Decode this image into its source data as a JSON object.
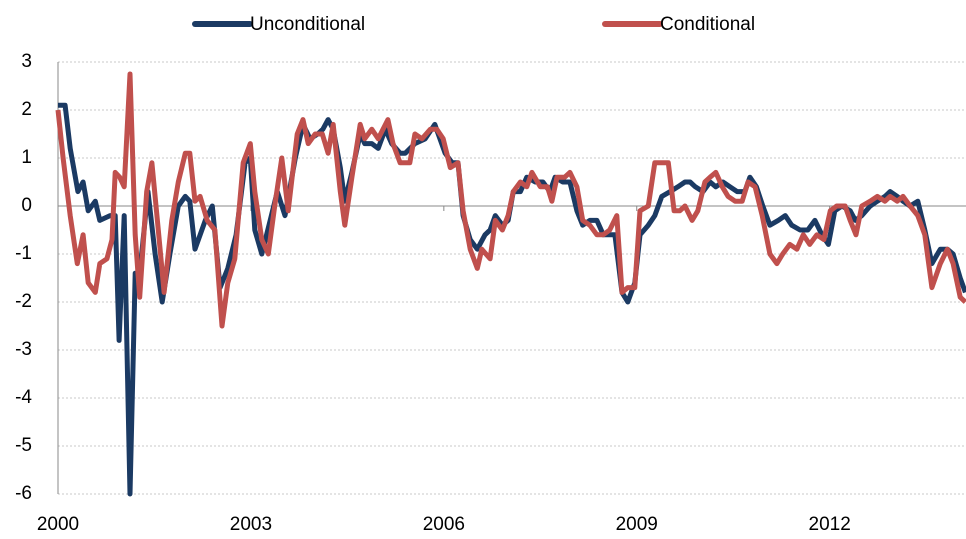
{
  "chart_data": {
    "type": "line",
    "xlim": [
      2000,
      2014.12
    ],
    "ylim": [
      -6,
      3
    ],
    "xticks": [
      2000,
      2003,
      2006,
      2009,
      2012
    ],
    "yticks": [
      -6,
      -5,
      -4,
      -3,
      -2,
      -1,
      0,
      1,
      2,
      3
    ],
    "grid": true,
    "legend": "top",
    "series": [
      {
        "name": "Unconditional",
        "color": "#1b3a63",
        "x": [
          2000,
          2000.11,
          2000.19,
          2000.31,
          2000.39,
          2000.47,
          2000.58,
          2000.65,
          2000.81,
          2000.89,
          2000.95,
          2001.03,
          2001.12,
          2001.2,
          2001.27,
          2001.4,
          2001.51,
          2001.62,
          2001.74,
          2001.87,
          2001.98,
          2002.05,
          2002.13,
          2002.29,
          2002.4,
          2002.52,
          2002.64,
          2002.77,
          2002.91,
          2002.99,
          2003.06,
          2003.17,
          2003.3,
          2003.41,
          2003.53,
          2003.69,
          2003.81,
          2003.92,
          2004.04,
          2004.12,
          2004.2,
          2004.28,
          2004.39,
          2004.46,
          2004.57,
          2004.7,
          2004.77,
          2004.88,
          2004.98,
          2005.09,
          2005.19,
          2005.32,
          2005.4,
          2005.55,
          2005.71,
          2005.86,
          2006.02,
          2006.13,
          2006.22,
          2006.3,
          2006.41,
          2006.52,
          2006.64,
          2006.72,
          2006.8,
          2006.91,
          2007,
          2007.08,
          2007.19,
          2007.29,
          2007.42,
          2007.54,
          2007.65,
          2007.73,
          2007.85,
          2007.96,
          2008.07,
          2008.16,
          2008.27,
          2008.38,
          2008.48,
          2008.55,
          2008.66,
          2008.77,
          2008.86,
          2008.97,
          2009.05,
          2009.18,
          2009.28,
          2009.39,
          2009.52,
          2009.64,
          2009.75,
          2009.83,
          2009.91,
          2010.03,
          2010.14,
          2010.23,
          2010.34,
          2010.45,
          2010.56,
          2010.68,
          2010.76,
          2010.86,
          2010.96,
          2011.07,
          2011.2,
          2011.31,
          2011.41,
          2011.54,
          2011.66,
          2011.77,
          2011.88,
          2011.98,
          2012.08,
          2012.19,
          2012.32,
          2012.4,
          2012.5,
          2012.63,
          2012.74,
          2012.86,
          2012.94,
          2013.05,
          2013.14,
          2013.25,
          2013.37,
          2013.48,
          2013.59,
          2013.72,
          2013.83,
          2013.92,
          2014.03,
          2014.11
        ],
        "values": [
          2.1,
          2.1,
          1.2,
          0.3,
          0.5,
          -0.1,
          0.1,
          -0.3,
          -0.2,
          -0.2,
          -2.8,
          -0.2,
          -6.0,
          -1.4,
          -1.4,
          0.3,
          -1.0,
          -2.0,
          -1.0,
          0.0,
          0.2,
          0.1,
          -0.9,
          -0.3,
          0.0,
          -1.7,
          -1.3,
          -0.6,
          0.9,
          1.0,
          -0.5,
          -1.0,
          -0.3,
          0.3,
          -0.2,
          1.0,
          1.7,
          1.4,
          1.5,
          1.6,
          1.8,
          1.6,
          0.8,
          0.1,
          0.7,
          1.5,
          1.3,
          1.3,
          1.2,
          1.6,
          1.3,
          1.1,
          1.1,
          1.3,
          1.4,
          1.7,
          1.1,
          0.9,
          0.9,
          -0.2,
          -0.7,
          -0.9,
          -0.6,
          -0.5,
          -0.2,
          -0.4,
          -0.3,
          0.3,
          0.3,
          0.6,
          0.5,
          0.5,
          0.3,
          0.6,
          0.5,
          0.5,
          -0.1,
          -0.4,
          -0.3,
          -0.3,
          -0.6,
          -0.6,
          -0.6,
          -1.8,
          -2.0,
          -1.6,
          -0.6,
          -0.4,
          -0.2,
          0.2,
          0.3,
          0.4,
          0.5,
          0.5,
          0.4,
          0.3,
          0.5,
          0.4,
          0.5,
          0.4,
          0.3,
          0.3,
          0.6,
          0.4,
          0.0,
          -0.4,
          -0.3,
          -0.2,
          -0.4,
          -0.5,
          -0.5,
          -0.3,
          -0.6,
          -0.8,
          -0.1,
          0.0,
          -0.1,
          -0.3,
          -0.2,
          0.0,
          0.1,
          0.2,
          0.3,
          0.2,
          0.1,
          0.0,
          0.1,
          -0.5,
          -1.2,
          -0.9,
          -0.9,
          -1.0,
          -1.5,
          -1.8
        ]
      },
      {
        "name": "Conditional",
        "color": "#c0504d",
        "x": [
          2000,
          2000.08,
          2000.19,
          2000.3,
          2000.39,
          2000.47,
          2000.58,
          2000.65,
          2000.76,
          2000.84,
          2000.89,
          2000.96,
          2001.03,
          2001.12,
          2001.2,
          2001.27,
          2001.38,
          2001.46,
          2001.56,
          2001.65,
          2001.77,
          2001.87,
          2001.98,
          2002.05,
          2002.13,
          2002.21,
          2002.32,
          2002.44,
          2002.55,
          2002.64,
          2002.75,
          2002.88,
          2002.99,
          2003.06,
          2003.17,
          2003.27,
          2003.37,
          2003.48,
          2003.58,
          2003.72,
          2003.81,
          2003.89,
          2004,
          2004.11,
          2004.2,
          2004.28,
          2004.39,
          2004.46,
          2004.57,
          2004.7,
          2004.77,
          2004.88,
          2004.98,
          2005.13,
          2005.21,
          2005.32,
          2005.47,
          2005.55,
          2005.66,
          2005.79,
          2005.89,
          2005.99,
          2006.1,
          2006.22,
          2006.3,
          2006.41,
          2006.52,
          2006.59,
          2006.72,
          2006.8,
          2006.91,
          2007,
          2007.08,
          2007.19,
          2007.29,
          2007.37,
          2007.5,
          2007.61,
          2007.68,
          2007.76,
          2007.88,
          2007.96,
          2008.07,
          2008.16,
          2008.27,
          2008.38,
          2008.48,
          2008.58,
          2008.69,
          2008.77,
          2008.86,
          2008.97,
          2009.05,
          2009.18,
          2009.28,
          2009.39,
          2009.49,
          2009.58,
          2009.67,
          2009.75,
          2009.86,
          2009.95,
          2010.06,
          2010.14,
          2010.23,
          2010.33,
          2010.42,
          2010.53,
          2010.64,
          2010.73,
          2010.84,
          2010.95,
          2011.07,
          2011.18,
          2011.27,
          2011.38,
          2011.49,
          2011.59,
          2011.69,
          2011.8,
          2011.91,
          2012.01,
          2012.11,
          2012.24,
          2012.32,
          2012.41,
          2012.5,
          2012.63,
          2012.74,
          2012.86,
          2012.94,
          2013.05,
          2013.14,
          2013.25,
          2013.37,
          2013.48,
          2013.59,
          2013.72,
          2013.83,
          2013.92,
          2014.03,
          2014.11
        ],
        "values": [
          2.0,
          1.0,
          -0.2,
          -1.2,
          -0.6,
          -1.6,
          -1.8,
          -1.2,
          -1.1,
          -0.7,
          0.7,
          0.6,
          0.4,
          2.75,
          -0.6,
          -1.9,
          0.3,
          0.9,
          -0.5,
          -1.8,
          -0.3,
          0.5,
          1.1,
          1.1,
          0.1,
          0.2,
          -0.3,
          -0.5,
          -2.5,
          -1.6,
          -1.1,
          0.9,
          1.3,
          0.3,
          -0.7,
          -1.0,
          0.0,
          1.0,
          -0.1,
          1.5,
          1.8,
          1.3,
          1.5,
          1.5,
          1.1,
          1.7,
          0.3,
          -0.4,
          0.6,
          1.7,
          1.4,
          1.6,
          1.4,
          1.8,
          1.3,
          0.9,
          0.9,
          1.5,
          1.4,
          1.6,
          1.6,
          1.4,
          0.8,
          0.9,
          -0.1,
          -0.9,
          -1.3,
          -0.9,
          -1.1,
          -0.3,
          -0.5,
          -0.2,
          0.3,
          0.5,
          0.4,
          0.7,
          0.4,
          0.4,
          0.1,
          0.6,
          0.6,
          0.7,
          0.4,
          -0.3,
          -0.4,
          -0.6,
          -0.6,
          -0.5,
          -0.2,
          -1.8,
          -1.7,
          -1.7,
          -0.1,
          0.0,
          0.9,
          0.9,
          0.9,
          -0.1,
          -0.1,
          0.0,
          -0.3,
          -0.1,
          0.5,
          0.6,
          0.7,
          0.4,
          0.2,
          0.1,
          0.1,
          0.5,
          0.4,
          -0.2,
          -1.0,
          -1.2,
          -1.0,
          -0.8,
          -0.9,
          -0.6,
          -0.8,
          -0.6,
          -0.7,
          -0.1,
          0.0,
          0.0,
          -0.3,
          -0.6,
          0.0,
          0.1,
          0.2,
          0.1,
          0.2,
          0.1,
          0.2,
          0.0,
          -0.2,
          -0.6,
          -1.7,
          -1.2,
          -0.9,
          -1.2,
          -1.9,
          -2.0
        ]
      }
    ]
  }
}
